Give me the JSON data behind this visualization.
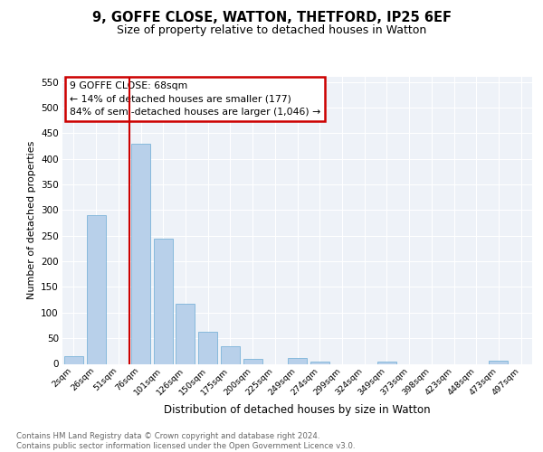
{
  "title1": "9, GOFFE CLOSE, WATTON, THETFORD, IP25 6EF",
  "title2": "Size of property relative to detached houses in Watton",
  "xlabel": "Distribution of detached houses by size in Watton",
  "ylabel": "Number of detached properties",
  "categories": [
    "2sqm",
    "26sqm",
    "51sqm",
    "76sqm",
    "101sqm",
    "126sqm",
    "150sqm",
    "175sqm",
    "200sqm",
    "225sqm",
    "249sqm",
    "274sqm",
    "299sqm",
    "324sqm",
    "349sqm",
    "373sqm",
    "398sqm",
    "423sqm",
    "448sqm",
    "473sqm",
    "497sqm"
  ],
  "values": [
    15,
    290,
    0,
    430,
    245,
    118,
    63,
    35,
    10,
    0,
    12,
    5,
    0,
    0,
    4,
    0,
    0,
    0,
    0,
    6,
    0
  ],
  "bar_color": "#b8d0ea",
  "bar_edge_color": "#6aaad4",
  "vline_color": "#cc0000",
  "annotation_text": "9 GOFFE CLOSE: 68sqm\n← 14% of detached houses are smaller (177)\n84% of semi-detached houses are larger (1,046) →",
  "annotation_box_color": "white",
  "annotation_box_edge_color": "#cc0000",
  "ylim": [
    0,
    560
  ],
  "yticks": [
    0,
    50,
    100,
    150,
    200,
    250,
    300,
    350,
    400,
    450,
    500,
    550
  ],
  "bg_color": "#eef2f8",
  "grid_color": "white",
  "footer1": "Contains HM Land Registry data © Crown copyright and database right 2024.",
  "footer2": "Contains public sector information licensed under the Open Government Licence v3.0."
}
